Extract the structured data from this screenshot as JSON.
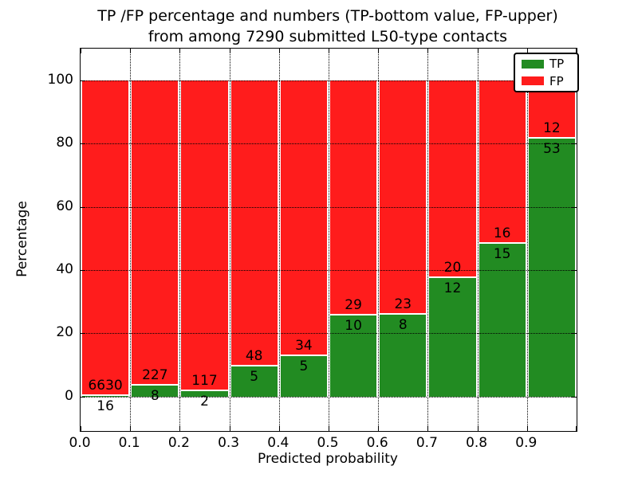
{
  "title": {
    "line1": "TP /FP percentage and numbers (TP-bottom value, FP-upper)",
    "line2": "from among 7290 submitted L50-type contacts"
  },
  "chart_data": {
    "type": "bar",
    "stacked": true,
    "normalized_to_percent": true,
    "title": "TP /FP percentage and numbers (TP-bottom value, FP-upper) from among 7290 submitted L50-type contacts",
    "xlabel": "Predicted probability",
    "ylabel": "Percentage",
    "x_tick_labels": [
      "0.0",
      "0.1",
      "0.2",
      "0.3",
      "0.4",
      "0.5",
      "0.6",
      "0.7",
      "0.8",
      "0.9"
    ],
    "y_tick_values": [
      0,
      20,
      40,
      60,
      80,
      100
    ],
    "xlim": [
      0.0,
      1.0
    ],
    "ylim": [
      -10.9,
      110
    ],
    "bin_width": 0.1,
    "categories": [
      "0.0-0.1",
      "0.1-0.2",
      "0.2-0.3",
      "0.3-0.4",
      "0.4-0.5",
      "0.5-0.6",
      "0.6-0.7",
      "0.7-0.8",
      "0.8-0.9",
      "0.9-1.0"
    ],
    "series": [
      {
        "name": "TP",
        "color": "#228b22",
        "counts": [
          16,
          8,
          2,
          5,
          5,
          10,
          8,
          12,
          15,
          53
        ]
      },
      {
        "name": "FP",
        "color": "#ff1c1c",
        "counts": [
          6630,
          227,
          117,
          48,
          34,
          29,
          23,
          20,
          16,
          12
        ]
      }
    ],
    "bar_edge_color": "#ffffff",
    "grid": "dotted, drawn above bars",
    "legend": {
      "position": "upper right",
      "entries": [
        "TP",
        "FP"
      ]
    }
  },
  "colors": {
    "tp": "#228b22",
    "fp": "#ff1c1c",
    "grid": "#000000",
    "text": "#000000",
    "background": "#ffffff"
  }
}
